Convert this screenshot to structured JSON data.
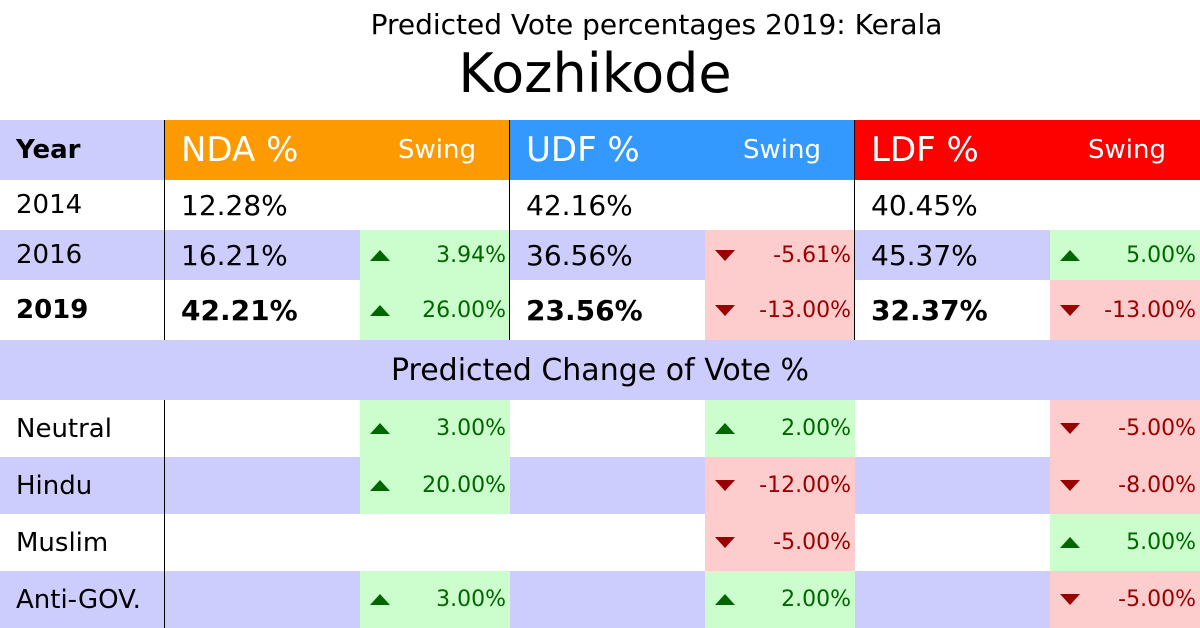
{
  "title_sub": "Predicted Vote percentages 2019: Kerala",
  "title_main": "Kozhikode",
  "header": {
    "year": "Year",
    "nda": "NDA %",
    "udf": "UDF %",
    "ldf": "LDF %",
    "swing": "Swing"
  },
  "colors": {
    "nda": "#fd9a02",
    "udf": "#3399ff",
    "ldf": "#fd0000",
    "band": "#cccdfc",
    "gain": "#ccfdcc",
    "loss": "#fdcccc",
    "gain_text": "#006600",
    "loss_text": "#990000"
  },
  "years": [
    {
      "label": "2014",
      "nda": "12.28%",
      "nda_swing": "",
      "udf": "42.16%",
      "udf_swing": "",
      "ldf": "40.45%",
      "ldf_swing": ""
    },
    {
      "label": "2016",
      "nda": "16.21%",
      "nda_swing": "3.94%",
      "udf": "36.56%",
      "udf_swing": "-5.61%",
      "ldf": "45.37%",
      "ldf_swing": "5.00%"
    },
    {
      "label": "2019",
      "nda": "42.21%",
      "nda_swing": "26.00%",
      "udf": "23.56%",
      "udf_swing": "-13.00%",
      "ldf": "32.37%",
      "ldf_swing": "-13.00%"
    }
  ],
  "change_title": "Predicted Change of Vote %",
  "changes": [
    {
      "label": "Neutral",
      "nda": "3.00%",
      "udf": "2.00%",
      "ldf": "-5.00%"
    },
    {
      "label": "Hindu",
      "nda": "20.00%",
      "udf": "-12.00%",
      "ldf": "-8.00%"
    },
    {
      "label": "Muslim",
      "nda": "",
      "udf": "-5.00%",
      "ldf": "5.00%"
    },
    {
      "label": "Anti-GOV.",
      "nda": "3.00%",
      "udf": "2.00%",
      "ldf": "-5.00%"
    }
  ]
}
